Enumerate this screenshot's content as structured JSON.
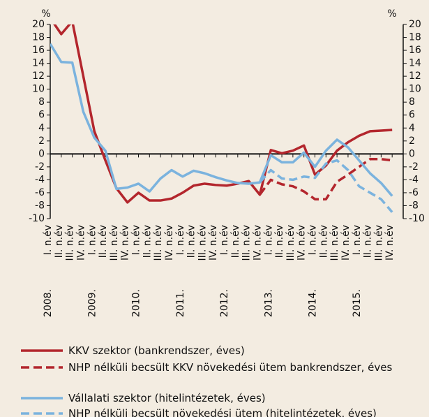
{
  "chart_data": {
    "type": "line",
    "y_unit": "%",
    "y2_unit": "%",
    "categories": [
      "I. n.év",
      "II. n.év",
      "III. n.év",
      "IV. n.év",
      "I. n.év",
      "II. n.év",
      "III. n.év",
      "IV. n.év",
      "I. n.év",
      "II. n.év",
      "III. n.év",
      "IV. n.év",
      "I. n.év",
      "II. n.év",
      "III. n.év",
      "IV. n.év",
      "I. n.év",
      "II. n.év",
      "III. n.év",
      "IV. n.év",
      "I. n.év",
      "II. n.év",
      "III. n.év",
      "IV. n.év",
      "I. n.év",
      "II. n.év",
      "III. n.év",
      "IV. n.év",
      "I. n.év",
      "II. n.év",
      "III. n.év",
      "IV. n.év"
    ],
    "groups": [
      "2008.",
      "2009.",
      "2010.",
      "2011.",
      "2012.",
      "2013.",
      "2014.",
      "2015."
    ],
    "series": [
      {
        "name": "KKV szektor (bankrendszer, éves)",
        "color": "#b3262d",
        "dash": false,
        "values": [
          21,
          18.5,
          20.5,
          12,
          3.5,
          -1,
          -5.3,
          -7.5,
          -6,
          -7.2,
          -7.2,
          -6.9,
          -6,
          -4.9,
          -4.6,
          -4.8,
          -4.9,
          -4.6,
          -4.2,
          -6.3,
          0.6,
          0.1,
          0.5,
          1.3,
          -3.2,
          -1.8,
          0.5,
          1.8,
          2.8,
          3.5,
          3.6,
          3.7
        ]
      },
      {
        "name": "NHP nélküli becsült KKV növekedési ütem bankrendszer, éves",
        "color": "#b3262d",
        "dash": true,
        "values": [
          null,
          null,
          null,
          null,
          null,
          null,
          null,
          null,
          null,
          null,
          null,
          null,
          null,
          null,
          null,
          null,
          null,
          null,
          null,
          -6.3,
          -4,
          -4.7,
          -5,
          -5.8,
          -7,
          -7,
          -4.3,
          -3.2,
          -2,
          -0.8,
          -0.8,
          -1
        ]
      },
      {
        "name": "Vállalati szektor (hitelintézetek, éves)",
        "color": "#7bb3de",
        "dash": false,
        "values": [
          17,
          14.2,
          14.1,
          6.5,
          2.5,
          0.5,
          -5.4,
          -5.2,
          -4.6,
          -5.8,
          -3.8,
          -2.5,
          -3.5,
          -2.6,
          -3,
          -3.6,
          -4.1,
          -4.5,
          -4.6,
          -4.4,
          -0.2,
          -1.3,
          -1.3,
          0.2,
          -2,
          0.5,
          2.2,
          1,
          -1,
          -3,
          -4.5,
          -6.5
        ]
      },
      {
        "name": "NHP nélküli becsült növekedési ütem (hitelintézetek, éves)",
        "color": "#7bb3de",
        "dash": true,
        "values": [
          null,
          null,
          null,
          null,
          null,
          null,
          null,
          null,
          null,
          null,
          null,
          null,
          null,
          null,
          null,
          null,
          null,
          null,
          null,
          -4.4,
          -2.5,
          -3.8,
          -4,
          -3.5,
          -3.7,
          -1.5,
          -1,
          -2.5,
          -5,
          -6,
          -7,
          -9
        ]
      }
    ],
    "ylim": [
      -10,
      20
    ],
    "yticks": [
      -10,
      -8,
      -6,
      -4,
      -2,
      0,
      2,
      4,
      6,
      8,
      10,
      12,
      14,
      16,
      18,
      20
    ],
    "y2lim": [
      -10,
      20
    ],
    "y2ticks": [
      -10,
      -8,
      -6,
      -4,
      -2,
      0,
      2,
      4,
      6,
      8,
      10,
      12,
      14,
      16,
      18,
      20
    ]
  }
}
